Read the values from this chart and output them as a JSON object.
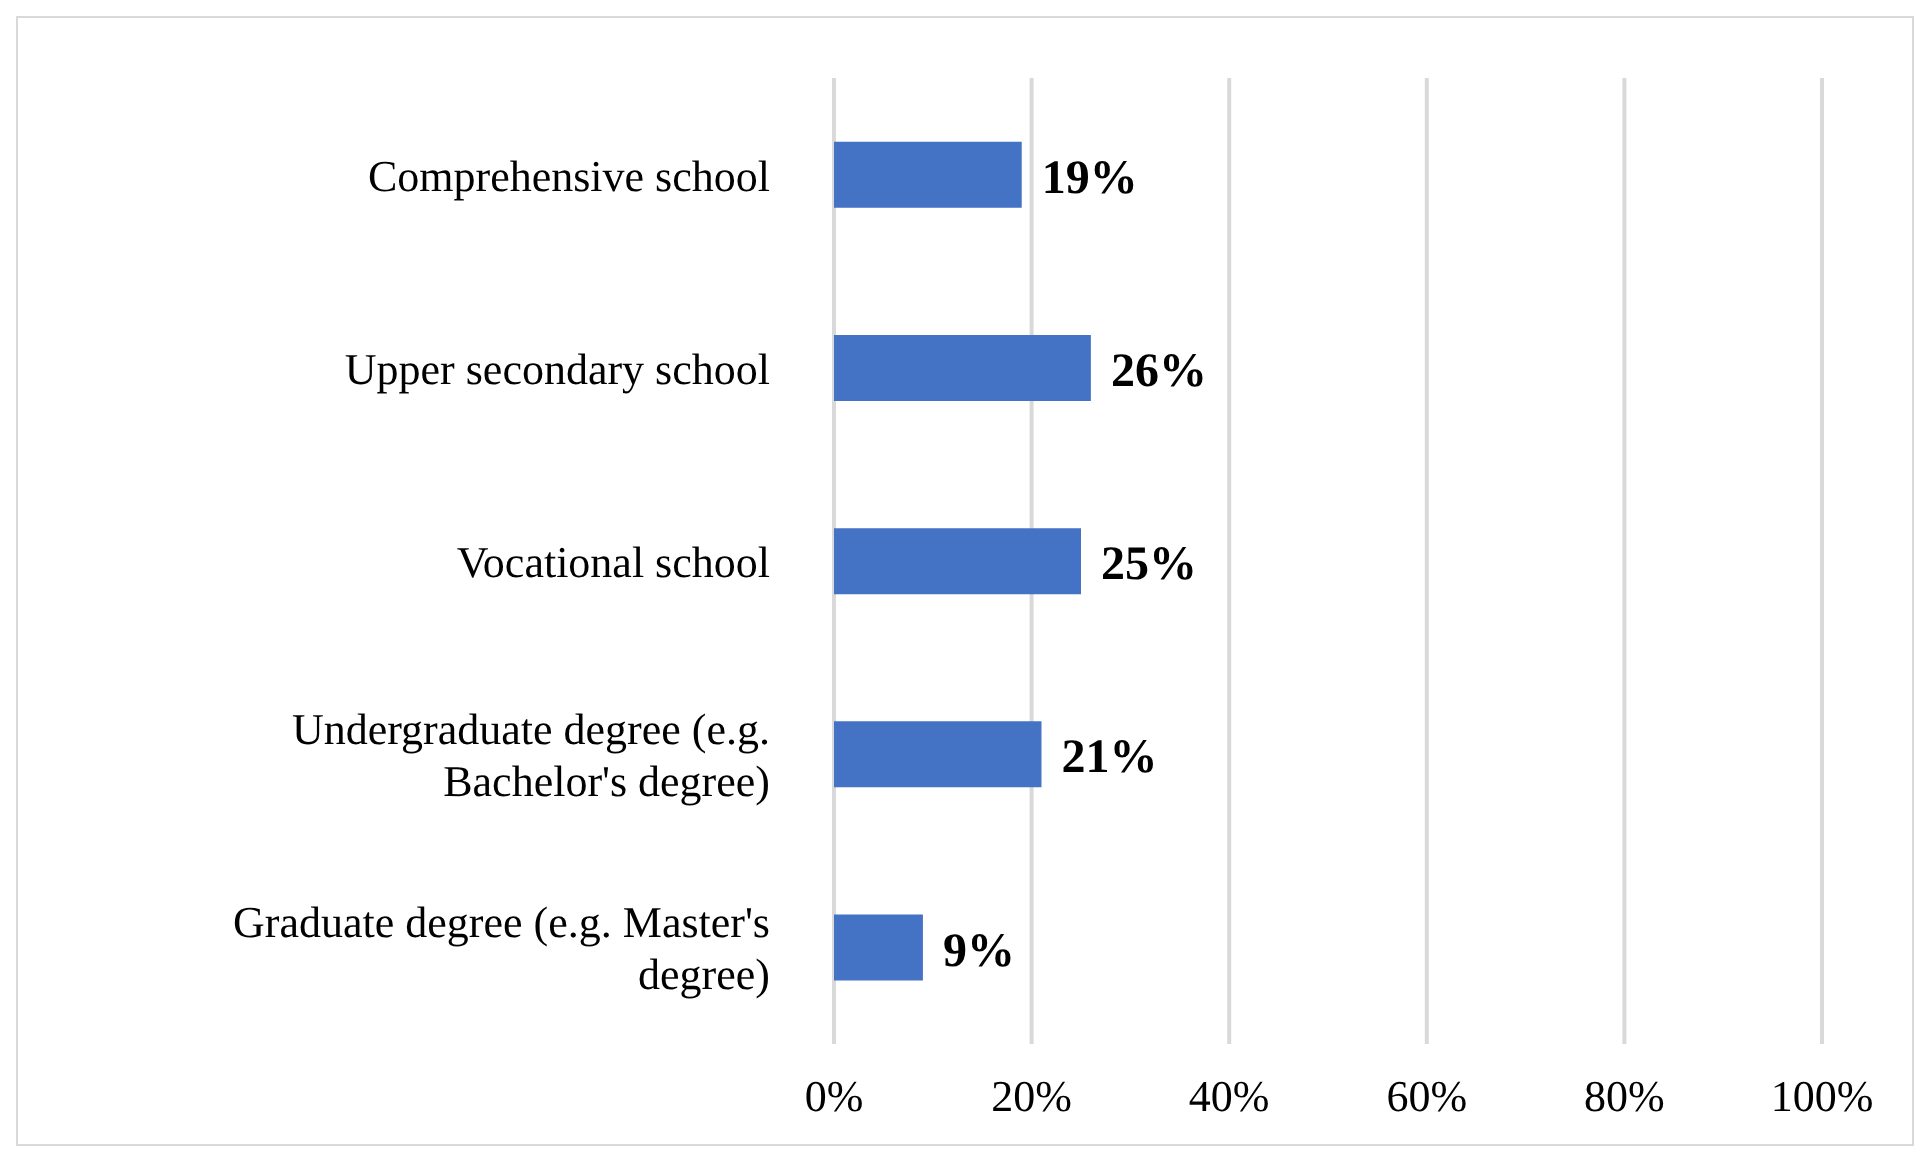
{
  "chart_data": {
    "type": "bar",
    "orientation": "horizontal",
    "categories": [
      "Comprehensive school",
      "Upper secondary school",
      "Vocational school",
      "Undergraduate degree (e.g. Bachelor's degree)",
      "Graduate degree (e.g. Master's degree)"
    ],
    "values": [
      19,
      26,
      25,
      21,
      9
    ],
    "value_labels": [
      "19%",
      "26%",
      "25%",
      "21%",
      "9%"
    ],
    "color": "#4472c4",
    "xlim": [
      0,
      100
    ],
    "xticks": [
      {
        "value": 0,
        "label": "0%"
      },
      {
        "value": 20,
        "label": "20%"
      },
      {
        "value": 40,
        "label": "40%"
      },
      {
        "value": 60,
        "label": "60%"
      },
      {
        "value": 80,
        "label": "80%"
      },
      {
        "value": 100,
        "label": "100%"
      }
    ],
    "grid": "x",
    "legend": false
  }
}
